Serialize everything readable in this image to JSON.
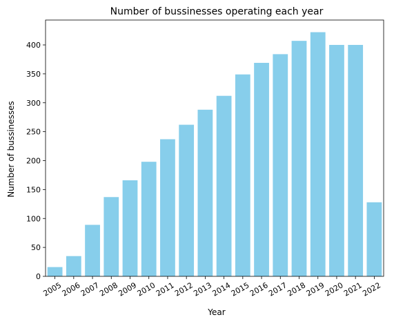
{
  "chart_data": {
    "type": "bar",
    "title": "Number of bussinesses operating each year",
    "xlabel": "Year",
    "ylabel": "Number of bussinesses",
    "categories": [
      "2005",
      "2006",
      "2007",
      "2008",
      "2009",
      "2010",
      "2011",
      "2012",
      "2013",
      "2014",
      "2015",
      "2016",
      "2017",
      "2018",
      "2019",
      "2020",
      "2021",
      "2022"
    ],
    "values": [
      16,
      35,
      89,
      137,
      166,
      198,
      237,
      262,
      288,
      312,
      349,
      369,
      384,
      407,
      422,
      400,
      400,
      128
    ],
    "ylim": [
      0,
      443
    ],
    "yticks": [
      0,
      50,
      100,
      150,
      200,
      250,
      300,
      350,
      400
    ],
    "grid": false,
    "legend": false,
    "bar_color": "#87CEEB"
  }
}
